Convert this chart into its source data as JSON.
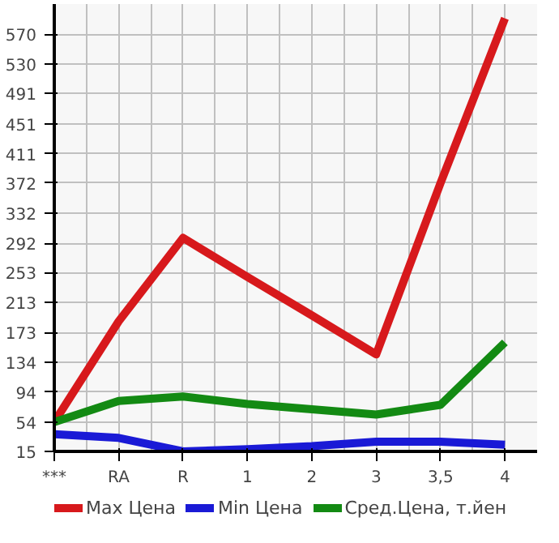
{
  "chart_data": {
    "type": "line",
    "categories": [
      "***",
      "RA",
      "R",
      "1",
      "2",
      "3",
      "3,5",
      "4"
    ],
    "series": [
      {
        "name": "Max Цена",
        "color": "#d7191c",
        "values": [
          54,
          188,
          299,
          247,
          196,
          144,
          372,
          591
        ]
      },
      {
        "name": "Min Цена",
        "color": "#1a1ad6",
        "values": [
          38,
          33,
          15,
          18,
          22,
          28,
          28,
          24
        ]
      },
      {
        "name": "Сред.Цена, т.йен",
        "color": "#138a13",
        "values": [
          54,
          82,
          88,
          78,
          71,
          64,
          77,
          160
        ]
      }
    ],
    "ylim": [
      15,
      610
    ],
    "yticks": [
      15,
      54,
      94,
      134,
      173,
      213,
      253,
      292,
      332,
      372,
      411,
      451,
      491,
      530,
      570
    ],
    "grid": true,
    "legend": "bottom",
    "marker": "none",
    "line_style": "solid"
  }
}
